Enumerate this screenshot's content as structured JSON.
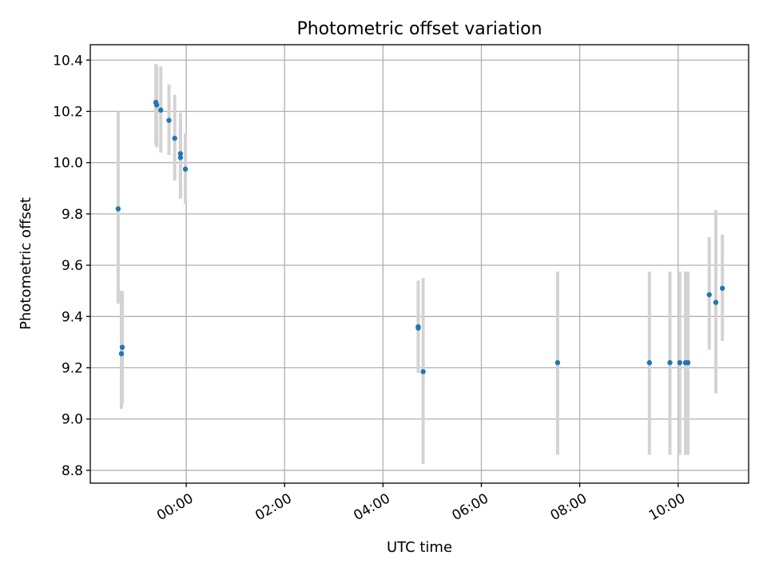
{
  "chart_data": {
    "type": "scatter",
    "title": "Photometric offset variation",
    "xlabel": "UTC time",
    "ylabel": "Photometric offset",
    "x_axis": {
      "kind": "time",
      "range": [
        "22:03",
        "11:26"
      ],
      "ticks": [
        "00:00",
        "02:00",
        "04:00",
        "06:00",
        "08:00",
        "10:00"
      ]
    },
    "y_axis": {
      "range": [
        8.75,
        10.46
      ],
      "ticks": [
        "8.8",
        "9.0",
        "9.2",
        "9.4",
        "9.6",
        "9.8",
        "10.0",
        "10.2",
        "10.4"
      ]
    },
    "grid": true,
    "marker_color": "#1f77b4",
    "errorbar_color": "#d3d3d3",
    "points": [
      {
        "t": "22:37",
        "y": 9.82,
        "lo": 9.45,
        "hi": 10.2
      },
      {
        "t": "22:41",
        "y": 9.255,
        "lo": 9.04,
        "hi": 9.5
      },
      {
        "t": "22:42",
        "y": 9.28,
        "lo": 9.06,
        "hi": 9.5
      },
      {
        "t": "23:23",
        "y": 10.235,
        "lo": 10.07,
        "hi": 10.385
      },
      {
        "t": "23:24",
        "y": 10.225,
        "lo": 10.06,
        "hi": 10.38
      },
      {
        "t": "23:29",
        "y": 10.205,
        "lo": 10.04,
        "hi": 10.375
      },
      {
        "t": "23:39",
        "y": 10.165,
        "lo": 10.03,
        "hi": 10.305
      },
      {
        "t": "23:46",
        "y": 10.095,
        "lo": 9.93,
        "hi": 10.265
      },
      {
        "t": "23:53",
        "y": 10.035,
        "lo": 9.86,
        "hi": 10.195
      },
      {
        "t": "23:53",
        "y": 10.02,
        "lo": 9.86,
        "hi": 10.17
      },
      {
        "t": "23:59",
        "y": 9.975,
        "lo": 9.84,
        "hi": 10.115
      },
      {
        "t": "04:43",
        "y": 9.36,
        "lo": 9.18,
        "hi": 9.54
      },
      {
        "t": "04:43",
        "y": 9.355,
        "lo": 9.19,
        "hi": 9.535
      },
      {
        "t": "04:49",
        "y": 9.185,
        "lo": 8.825,
        "hi": 9.55
      },
      {
        "t": "07:33",
        "y": 9.22,
        "lo": 8.86,
        "hi": 9.575
      },
      {
        "t": "09:25",
        "y": 9.22,
        "lo": 8.86,
        "hi": 9.575
      },
      {
        "t": "09:50",
        "y": 9.22,
        "lo": 8.86,
        "hi": 9.575
      },
      {
        "t": "10:02",
        "y": 9.22,
        "lo": 8.86,
        "hi": 9.575
      },
      {
        "t": "10:09",
        "y": 9.22,
        "lo": 8.86,
        "hi": 9.575
      },
      {
        "t": "10:12",
        "y": 9.22,
        "lo": 8.86,
        "hi": 9.575
      },
      {
        "t": "10:38",
        "y": 9.485,
        "lo": 9.27,
        "hi": 9.71
      },
      {
        "t": "10:46",
        "y": 9.455,
        "lo": 9.1,
        "hi": 9.815
      },
      {
        "t": "10:54",
        "y": 9.51,
        "lo": 9.305,
        "hi": 9.72
      }
    ]
  }
}
